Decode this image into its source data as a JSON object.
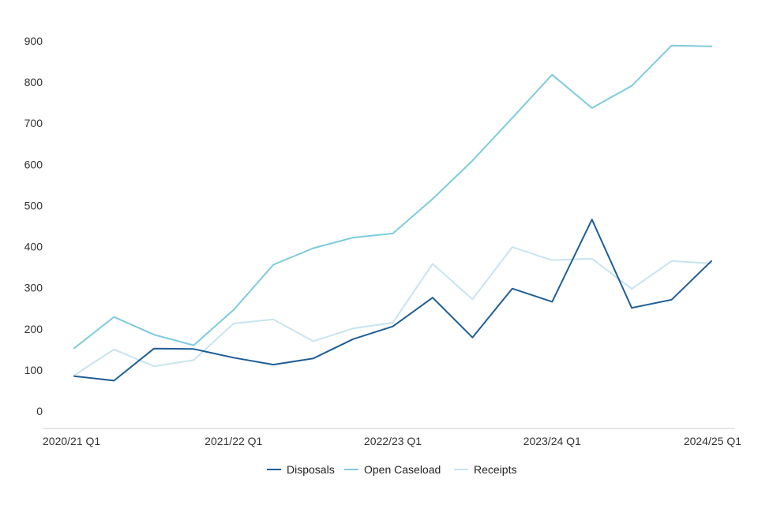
{
  "chart_data": {
    "type": "line",
    "title": "",
    "xlabel": "",
    "ylabel": "",
    "ylim": [
      0,
      900
    ],
    "yticks": [
      0,
      100,
      200,
      300,
      400,
      500,
      600,
      700,
      800,
      900
    ],
    "x": [
      "2020/21 Q1",
      "2020/21 Q2",
      "2020/21 Q3",
      "2020/21 Q4",
      "2021/22 Q1",
      "2021/22 Q2",
      "2021/22 Q3",
      "2021/22 Q4",
      "2022/23 Q1",
      "2022/23 Q2",
      "2022/23 Q3",
      "2022/23 Q4",
      "2023/24 Q1",
      "2023/24 Q2",
      "2023/24 Q3",
      "2023/24 Q4",
      "2024/25 Q1"
    ],
    "xtick_labels": [
      "2020/21 Q1",
      "2021/22 Q1",
      "2022/23 Q1",
      "2023/24 Q1",
      "2024/25 Q1"
    ],
    "grid": false,
    "legend_position": "bottom",
    "series": [
      {
        "name": "Disposals",
        "color": "#1f5e96",
        "values": [
          85,
          74,
          152,
          151,
          130,
          113,
          128,
          175,
          206,
          276,
          179,
          298,
          266,
          466,
          251,
          271,
          365
        ]
      },
      {
        "name": "Open Caseload",
        "color": "#7ecbdf",
        "values": [
          153,
          229,
          186,
          160,
          246,
          356,
          396,
          422,
          432,
          516,
          609,
          713,
          818,
          737,
          791,
          889,
          887
        ]
      },
      {
        "name": "Receipts",
        "color": "#c8e4ef",
        "values": [
          87,
          150,
          109,
          124,
          213,
          223,
          170,
          201,
          215,
          358,
          272,
          399,
          367,
          371,
          297,
          365,
          359
        ]
      }
    ]
  }
}
